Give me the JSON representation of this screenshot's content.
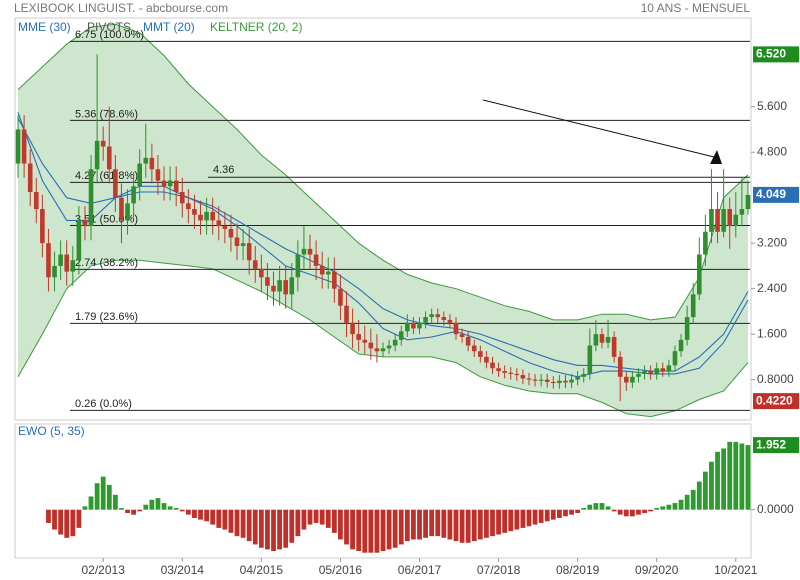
{
  "header": {
    "title": "LEXIBOOK LINGUIST. - abcbourse.com",
    "period": "10 ANS - MENSUEL"
  },
  "chart_data": [
    {
      "type": "candlestick",
      "up_color": "#2f8f2f",
      "down_color": "#c0392b",
      "xlim": [
        -0.5,
        120.5
      ],
      "ylim": [
        0.09,
        7.16
      ],
      "yticks": [
        {
          "value": 5.6,
          "label": "5.600"
        },
        {
          "value": 4.8,
          "label": "4.800"
        },
        {
          "value": 3.2,
          "label": "3.200"
        },
        {
          "value": 2.4,
          "label": "2.400"
        },
        {
          "value": 1.6,
          "label": "1.600"
        },
        {
          "value": 0.8,
          "label": "0.8000"
        }
      ],
      "price_markers": [
        {
          "value": 6.52,
          "label": "6.520",
          "color": "#1e8c1e"
        },
        {
          "value": 4.049,
          "label": "4.049",
          "color": "#2a6fb5"
        },
        {
          "value": 0.422,
          "label": "0.4220",
          "color": "#c0302a"
        }
      ],
      "pivots_label": "PIVOTS",
      "pivots": [
        {
          "value": 6.75,
          "label": "6.75 (100.0%)"
        },
        {
          "value": 5.36,
          "label": "5.36 (78.6%)"
        },
        {
          "value": 4.27,
          "label": "4.27 (61.8%)"
        },
        {
          "value": 3.51,
          "label": "3.51 (50.0%)"
        },
        {
          "value": 2.74,
          "label": "2.74 (38.2%)"
        },
        {
          "value": 1.79,
          "label": "1.79 (23.6%)"
        },
        {
          "value": 0.26,
          "label": "0.26 (0.0%)"
        }
      ],
      "level": 4.36,
      "open": [
        4.6,
        5.2,
        4.6,
        4.1,
        3.8,
        3.2,
        2.6,
        2.8,
        3.0,
        2.7,
        2.9,
        3.6,
        3.5,
        4.5,
        5.0,
        4.9,
        4.5,
        4.0,
        3.6,
        3.9,
        4.2,
        4.6,
        4.7,
        4.5,
        4.3,
        4.2,
        4.3,
        4.1,
        3.9,
        3.8,
        3.7,
        3.6,
        3.75,
        3.6,
        3.5,
        3.45,
        3.3,
        3.15,
        3.2,
        2.9,
        2.75,
        2.6,
        2.45,
        2.35,
        2.55,
        2.3,
        2.6,
        3.0,
        3.1,
        3.0,
        2.8,
        2.65,
        2.7,
        2.4,
        2.1,
        1.8,
        1.6,
        1.5,
        1.45,
        1.35,
        1.3,
        1.35,
        1.4,
        1.5,
        1.65,
        1.8,
        1.7,
        1.8,
        1.9,
        1.95,
        1.9,
        1.85,
        1.8,
        1.6,
        1.55,
        1.4,
        1.3,
        1.2,
        1.1,
        1.0,
        0.95,
        0.92,
        0.9,
        0.88,
        0.82,
        0.8,
        0.78,
        0.8,
        0.76,
        0.74,
        0.78,
        0.75,
        0.8,
        0.85,
        0.9,
        1.4,
        1.6,
        1.45,
        1.55,
        1.2,
        0.85,
        0.75,
        0.85,
        0.9,
        0.95,
        0.9,
        1.0,
        0.95,
        1.05,
        1.3,
        1.5,
        1.9,
        2.3,
        3.0,
        3.4,
        3.8,
        3.4,
        3.8,
        3.5,
        3.7,
        3.8
      ],
      "high": [
        5.45,
        5.45,
        4.85,
        4.35,
        4.05,
        3.45,
        3.05,
        3.25,
        3.25,
        3.15,
        3.85,
        3.85,
        4.75,
        6.52,
        5.25,
        5.6,
        4.75,
        4.25,
        4.15,
        4.45,
        4.85,
        5.3,
        4.95,
        4.75,
        4.55,
        4.55,
        4.55,
        4.35,
        4.15,
        4.05,
        3.95,
        4.0,
        4.0,
        3.85,
        3.75,
        3.7,
        3.55,
        3.45,
        3.45,
        3.15,
        3.0,
        2.85,
        2.7,
        2.8,
        2.8,
        2.85,
        3.25,
        3.5,
        3.35,
        3.25,
        3.05,
        2.95,
        2.95,
        2.65,
        2.35,
        2.05,
        1.85,
        1.75,
        1.7,
        1.6,
        1.45,
        1.5,
        1.6,
        1.75,
        1.95,
        1.9,
        1.9,
        2.0,
        2.05,
        2.05,
        2.0,
        1.95,
        1.9,
        1.7,
        1.65,
        1.5,
        1.4,
        1.3,
        1.2,
        1.1,
        1.05,
        1.02,
        1.0,
        0.98,
        0.92,
        0.9,
        0.9,
        0.9,
        0.86,
        0.88,
        0.88,
        0.9,
        0.95,
        1.0,
        1.7,
        1.85,
        1.7,
        1.85,
        1.65,
        1.3,
        0.95,
        0.95,
        1.0,
        1.05,
        1.05,
        1.1,
        1.1,
        1.15,
        1.4,
        1.6,
        2.1,
        2.5,
        3.3,
        3.7,
        4.5,
        4.1,
        4.5,
        4.0,
        4.1,
        4.35,
        4.3
      ],
      "low": [
        4.35,
        4.35,
        3.85,
        3.55,
        2.95,
        2.35,
        2.35,
        2.55,
        2.45,
        2.45,
        2.65,
        3.25,
        3.25,
        4.25,
        4.65,
        4.25,
        3.75,
        3.2,
        3.35,
        3.65,
        3.95,
        4.35,
        4.25,
        4.05,
        3.95,
        3.95,
        3.85,
        3.65,
        3.55,
        3.45,
        3.35,
        3.35,
        3.35,
        3.25,
        3.2,
        3.05,
        2.9,
        2.9,
        2.65,
        2.5,
        2.35,
        2.2,
        2.1,
        2.1,
        2.05,
        2.05,
        2.35,
        2.75,
        2.75,
        2.55,
        2.4,
        2.4,
        2.15,
        1.85,
        1.55,
        1.35,
        1.3,
        1.25,
        1.15,
        1.1,
        1.2,
        1.25,
        1.3,
        1.4,
        1.55,
        1.6,
        1.6,
        1.7,
        1.8,
        1.8,
        1.75,
        1.7,
        1.5,
        1.45,
        1.3,
        1.2,
        1.1,
        1.0,
        0.9,
        0.85,
        0.82,
        0.8,
        0.78,
        0.72,
        0.7,
        0.68,
        0.68,
        0.66,
        0.64,
        0.64,
        0.65,
        0.65,
        0.7,
        0.75,
        0.8,
        1.3,
        1.35,
        1.35,
        1.1,
        0.422,
        0.6,
        0.65,
        0.75,
        0.8,
        0.8,
        0.8,
        0.85,
        0.85,
        0.95,
        1.2,
        1.4,
        1.8,
        2.2,
        2.8,
        3.2,
        3.2,
        3.3,
        3.1,
        3.3,
        3.5,
        3.7
      ],
      "close": [
        5.2,
        4.6,
        4.1,
        3.8,
        3.2,
        2.6,
        2.8,
        3.0,
        2.7,
        2.9,
        3.6,
        3.5,
        4.5,
        5.0,
        4.9,
        4.5,
        4.0,
        3.6,
        3.9,
        4.2,
        4.6,
        4.7,
        4.5,
        4.3,
        4.2,
        4.3,
        4.1,
        3.9,
        3.8,
        3.7,
        3.6,
        3.75,
        3.6,
        3.5,
        3.45,
        3.3,
        3.15,
        3.2,
        2.9,
        2.75,
        2.6,
        2.45,
        2.35,
        2.55,
        2.3,
        2.6,
        3.0,
        3.1,
        3.0,
        2.8,
        2.65,
        2.7,
        2.4,
        2.1,
        1.8,
        1.6,
        1.5,
        1.45,
        1.35,
        1.3,
        1.35,
        1.4,
        1.5,
        1.65,
        1.8,
        1.7,
        1.8,
        1.9,
        1.95,
        1.9,
        1.85,
        1.8,
        1.6,
        1.55,
        1.4,
        1.3,
        1.2,
        1.1,
        1.0,
        0.95,
        0.92,
        0.9,
        0.88,
        0.82,
        0.8,
        0.78,
        0.8,
        0.76,
        0.74,
        0.78,
        0.75,
        0.8,
        0.85,
        0.9,
        1.4,
        1.6,
        1.45,
        1.55,
        1.2,
        0.85,
        0.75,
        0.85,
        0.9,
        0.95,
        0.9,
        1.0,
        0.95,
        1.05,
        1.3,
        1.5,
        1.9,
        2.3,
        3.0,
        3.4,
        3.8,
        3.4,
        3.8,
        3.5,
        3.7,
        3.8,
        4.049
      ],
      "overlay_x": [
        0,
        4,
        8,
        12,
        16,
        20,
        24,
        28,
        32,
        36,
        40,
        44,
        48,
        52,
        56,
        60,
        64,
        68,
        72,
        76,
        80,
        84,
        88,
        92,
        96,
        100,
        104,
        108,
        112,
        116,
        120
      ],
      "overlays": [
        {
          "name": "MME (30)",
          "color": "#2a6fb5",
          "values": [
            5.4,
            4.6,
            4.0,
            3.9,
            4.0,
            4.1,
            4.1,
            4.0,
            3.85,
            3.6,
            3.35,
            3.1,
            2.9,
            2.7,
            2.4,
            2.05,
            1.85,
            1.75,
            1.7,
            1.6,
            1.45,
            1.3,
            1.15,
            1.05,
            1.05,
            1.0,
            0.95,
            0.95,
            1.2,
            1.6,
            2.35
          ]
        },
        {
          "name": "MMT (20)",
          "color": "#2a6fb5",
          "values": [
            5.5,
            4.3,
            3.6,
            3.6,
            4.0,
            4.2,
            4.2,
            4.0,
            3.8,
            3.5,
            3.15,
            2.8,
            2.65,
            2.5,
            2.15,
            1.7,
            1.5,
            1.55,
            1.65,
            1.5,
            1.3,
            1.1,
            0.95,
            0.85,
            0.95,
            0.95,
            0.9,
            0.9,
            1.0,
            1.45,
            2.2
          ]
        },
        {
          "name": "KELTNER (20, 2)",
          "color": "#3c9a3c",
          "upper": [
            5.9,
            6.3,
            6.7,
            7.0,
            7.05,
            6.9,
            6.5,
            6.0,
            5.6,
            5.2,
            4.75,
            4.4,
            4.0,
            3.6,
            3.2,
            2.9,
            2.65,
            2.5,
            2.4,
            2.25,
            2.1,
            2.0,
            1.85,
            1.85,
            1.95,
            1.95,
            1.85,
            1.9,
            2.6,
            4.0,
            4.4
          ],
          "lower": [
            0.85,
            1.6,
            2.4,
            2.8,
            2.9,
            2.9,
            2.85,
            2.8,
            2.75,
            2.55,
            2.35,
            2.1,
            1.85,
            1.55,
            1.25,
            1.2,
            1.2,
            1.2,
            1.1,
            0.85,
            0.7,
            0.6,
            0.55,
            0.55,
            0.4,
            0.2,
            0.15,
            0.25,
            0.45,
            0.6,
            1.1
          ]
        }
      ]
    },
    {
      "type": "bar",
      "title": "EWO (5, 35)",
      "positive_color": "#2e9b2e",
      "negative_color": "#c0302a",
      "xlim": [
        -0.5,
        120.5
      ],
      "ylim": [
        -1.46,
        2.59
      ],
      "yticks": [
        {
          "value": 0,
          "label": "0.0000"
        }
      ],
      "price_markers": [
        {
          "value": 1.952,
          "label": "1.952",
          "color": "#1e8c1e"
        }
      ],
      "xticks": [
        {
          "value": 14,
          "label": "02/2013"
        },
        {
          "value": 27,
          "label": "03/2014"
        },
        {
          "value": 40,
          "label": "04/2015"
        },
        {
          "value": 53,
          "label": "05/2016"
        },
        {
          "value": 66,
          "label": "06/2017"
        },
        {
          "value": 79,
          "label": "07/2018"
        },
        {
          "value": 92,
          "label": "08/2019"
        },
        {
          "value": 105,
          "label": "09/2020"
        },
        {
          "value": 118,
          "label": "10/2021"
        }
      ],
      "values": [
        null,
        null,
        null,
        null,
        null,
        -0.4,
        -0.6,
        -0.75,
        -0.85,
        -0.8,
        -0.55,
        0.1,
        0.4,
        0.8,
        1.0,
        0.75,
        0.45,
        0.05,
        -0.1,
        -0.15,
        -0.05,
        0.15,
        0.3,
        0.35,
        0.2,
        0.1,
        0.05,
        -0.05,
        -0.15,
        -0.25,
        -0.3,
        -0.35,
        -0.45,
        -0.55,
        -0.6,
        -0.7,
        -0.8,
        -0.85,
        -0.95,
        -1.05,
        -1.15,
        -1.2,
        -1.25,
        -1.2,
        -1.15,
        -1.0,
        -0.8,
        -0.6,
        -0.45,
        -0.4,
        -0.45,
        -0.55,
        -0.7,
        -0.9,
        -1.05,
        -1.2,
        -1.25,
        -1.3,
        -1.3,
        -1.3,
        -1.25,
        -1.2,
        -1.15,
        -1.05,
        -0.95,
        -0.9,
        -0.9,
        -0.85,
        -0.8,
        -0.8,
        -0.85,
        -0.9,
        -0.95,
        -1.0,
        -1.0,
        -0.95,
        -0.9,
        -0.85,
        -0.8,
        -0.75,
        -0.7,
        -0.65,
        -0.6,
        -0.55,
        -0.5,
        -0.45,
        -0.4,
        -0.35,
        -0.3,
        -0.25,
        -0.2,
        -0.15,
        -0.1,
        0.05,
        0.15,
        0.2,
        0.2,
        0.1,
        -0.05,
        -0.15,
        -0.2,
        -0.2,
        -0.15,
        -0.1,
        -0.05,
        0.05,
        0.1,
        0.15,
        0.2,
        0.3,
        0.45,
        0.6,
        0.85,
        1.15,
        1.45,
        1.75,
        1.85,
        2.05,
        2.05,
        2.0,
        1.952
      ]
    }
  ]
}
